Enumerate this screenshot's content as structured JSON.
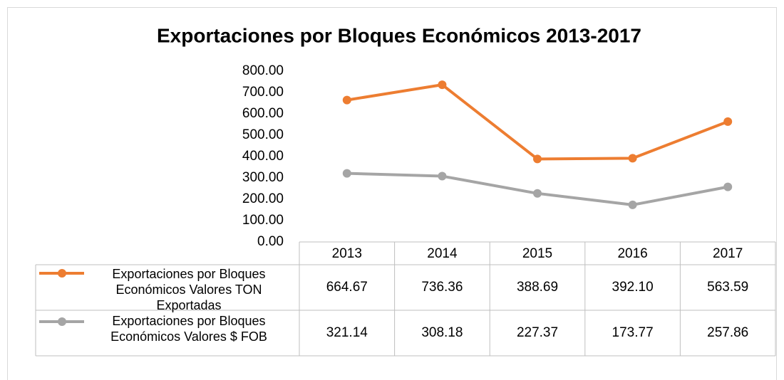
{
  "chart_data": {
    "type": "line",
    "title": "Exportaciones por Bloques Económicos 2013-2017",
    "categories": [
      "2013",
      "2014",
      "2015",
      "2016",
      "2017"
    ],
    "series": [
      {
        "name": "Exportaciones por Bloques Económicos Valores TON Exportadas",
        "color": "#ed7d31",
        "values": [
          664.67,
          736.36,
          388.69,
          392.1,
          563.59
        ],
        "value_labels": [
          "664.67",
          "736.36",
          "388.69",
          "392.10",
          "563.59"
        ]
      },
      {
        "name": "Exportaciones por Bloques Económicos Valores $ FOB",
        "color": "#a5a5a5",
        "values": [
          321.14,
          308.18,
          227.37,
          173.77,
          257.86
        ],
        "value_labels": [
          "321.14",
          "308.18",
          "227.37",
          "173.77",
          "257.86"
        ]
      }
    ],
    "ylim": [
      0,
      800
    ],
    "yticks": [
      {
        "value": 0,
        "label": "0.00"
      },
      {
        "value": 100,
        "label": "100.00"
      },
      {
        "value": 200,
        "label": "200.00"
      },
      {
        "value": 300,
        "label": "300.00"
      },
      {
        "value": 400,
        "label": "400.00"
      },
      {
        "value": 500,
        "label": "500.00"
      },
      {
        "value": 600,
        "label": "600.00"
      },
      {
        "value": 700,
        "label": "700.00"
      },
      {
        "value": 800,
        "label": "800.00"
      }
    ]
  }
}
